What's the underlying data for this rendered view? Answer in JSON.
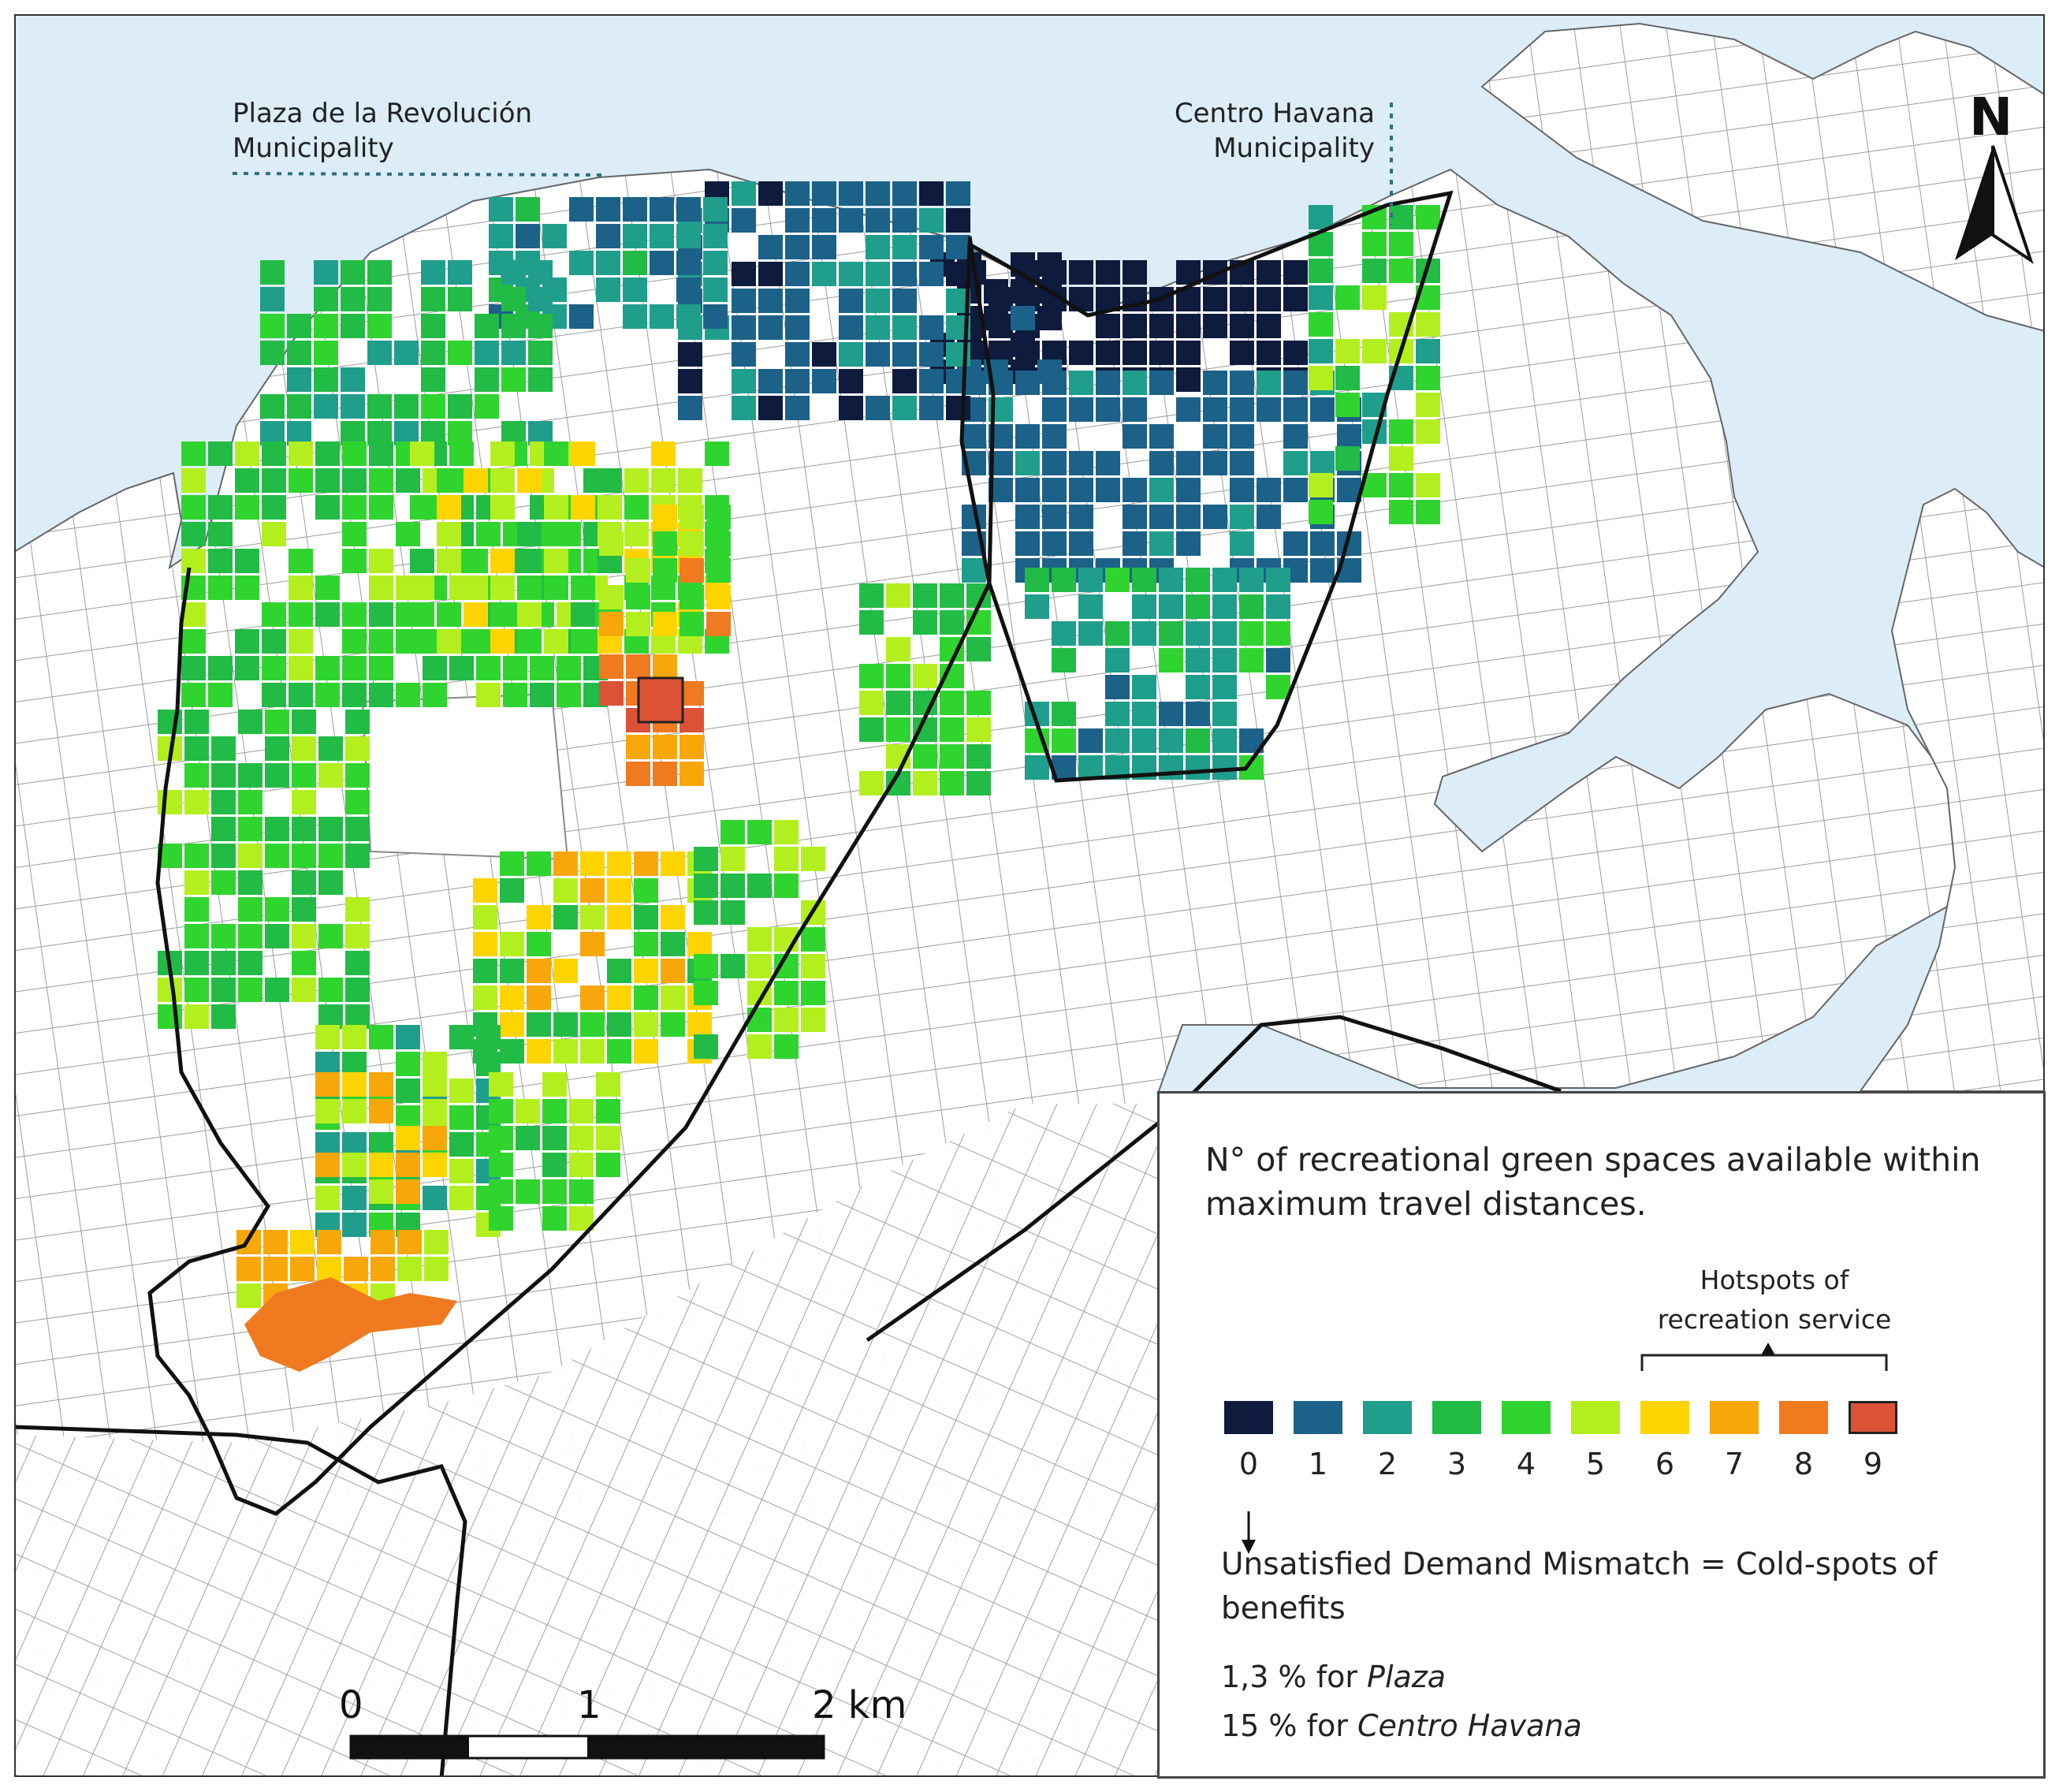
{
  "map": {
    "labels": {
      "plaza": "Plaza de la Revolución\nMunicipality",
      "centro": "Centro Havana\nMunicipality"
    },
    "north_label": "N",
    "scale_bar": {
      "labels": [
        "0",
        "1",
        "2 km"
      ]
    },
    "colors": {
      "water": "#dcedf8",
      "land": "#ffffff",
      "streets": "#9a9a9a",
      "boundary": "#111111"
    }
  },
  "legend": {
    "title": "N° of recreational green spaces available within maximum travel distances.",
    "hotspot_label": "Hotspots of\nrecreation service",
    "classes": [
      {
        "value": "0",
        "color": "#0f1b3d"
      },
      {
        "value": "1",
        "color": "#1c6188"
      },
      {
        "value": "2",
        "color": "#1f9e8c"
      },
      {
        "value": "3",
        "color": "#22bb45"
      },
      {
        "value": "4",
        "color": "#30d42f"
      },
      {
        "value": "5",
        "color": "#b3ef1e"
      },
      {
        "value": "6",
        "color": "#fdd400"
      },
      {
        "value": "7",
        "color": "#f8a70a"
      },
      {
        "value": "8",
        "color": "#ef7a20"
      },
      {
        "value": "9",
        "color": "#dc5236"
      }
    ],
    "cold_spot_note": "Unsatisfied Demand Mismatch = Cold-spots of benefits",
    "stats": [
      {
        "value": "1,3 % for ",
        "place": "Plaza"
      },
      {
        "value": "15 % for ",
        "place": "Centro Havana"
      }
    ]
  }
}
